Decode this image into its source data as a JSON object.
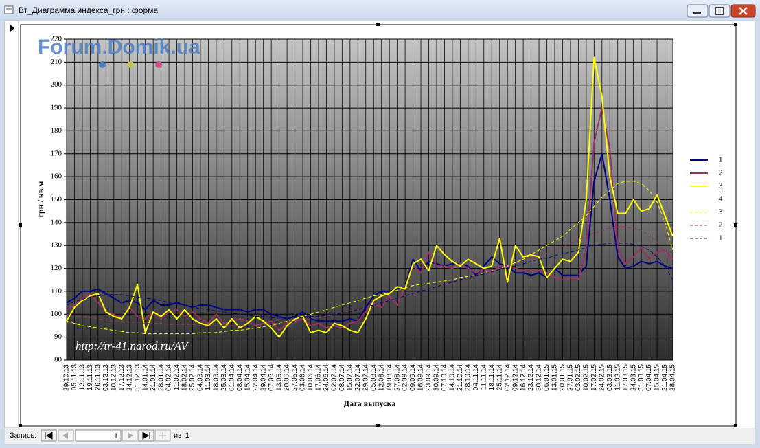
{
  "window": {
    "title": "Вт_Диаграмма индекса_грн : форма"
  },
  "record_nav": {
    "label": "Запись:",
    "current": "1",
    "of_label": "из",
    "total": "1"
  },
  "chart_data": {
    "type": "line",
    "watermark": "Forum.Domik.ua",
    "annotation": "http://tr-41.narod.ru/AV",
    "x_label": "Дата выпуска",
    "y_label": "грн / кв.м",
    "ylim": [
      80,
      220
    ],
    "yticks": [
      80,
      90,
      100,
      110,
      120,
      130,
      140,
      150,
      160,
      170,
      180,
      190,
      200,
      210,
      220
    ],
    "grid": true,
    "legend": "right",
    "categories": [
      "29.10.13",
      "05.11.13",
      "12.11.13",
      "19.11.13",
      "26.11.13",
      "03.12.13",
      "10.12.13",
      "17.12.13",
      "24.12.13",
      "31.12.13",
      "14.01.14",
      "21.01.14",
      "28.01.14",
      "04.02.14",
      "11.02.14",
      "18.02.14",
      "25.02.14",
      "04.03.14",
      "11.03.14",
      "18.03.14",
      "25.03.14",
      "01.04.14",
      "08.04.14",
      "15.04.14",
      "22.04.14",
      "29.04.14",
      "07.05.14",
      "13.05.14",
      "20.05.14",
      "27.05.14",
      "03.06.14",
      "10.06.14",
      "17.06.14",
      "24.06.14",
      "02.07.14",
      "08.07.14",
      "15.07.14",
      "22.07.14",
      "29.07.14",
      "05.08.14",
      "12.08.14",
      "19.08.14",
      "27.08.14",
      "02.09.14",
      "09.09.14",
      "16.09.14",
      "23.09.14",
      "30.09.14",
      "07.10.14",
      "14.10.14",
      "21.10.14",
      "28.10.14",
      "04.11.14",
      "11.11.14",
      "18.11.14",
      "25.11.14",
      "02.12.14",
      "09.12.14",
      "16.12.14",
      "23.12.14",
      "30.12.14",
      "06.01.15",
      "13.01.15",
      "20.01.15",
      "27.01.15",
      "03.02.15",
      "10.02.15",
      "17.02.15",
      "24.02.15",
      "03.03.15",
      "11.03.15",
      "17.03.15",
      "24.03.15",
      "31.03.15",
      "07.04.15",
      "15.04.15",
      "21.04.15",
      "28.04.15"
    ],
    "series": [
      {
        "name": "1",
        "color": "#000080",
        "style": "solid",
        "values": [
          105,
          107,
          110,
          110,
          111,
          109,
          107,
          105,
          106,
          105,
          102,
          106,
          104,
          104,
          105,
          104,
          103,
          104,
          104,
          103,
          102,
          102,
          102,
          101,
          102,
          102,
          100,
          99,
          98,
          99,
          101,
          98,
          97,
          97,
          97,
          97,
          98,
          97,
          103,
          108,
          110,
          110,
          111,
          112,
          124,
          119,
          123,
          122,
          121,
          122,
          122,
          121,
          117,
          121,
          125,
          122,
          121,
          118,
          118,
          117,
          118,
          116,
          120,
          117,
          117,
          117,
          121,
          158,
          170,
          150,
          125,
          120,
          121,
          123,
          122,
          123,
          121,
          120
        ]
      },
      {
        "name": "2",
        "color": "#993366",
        "style": "solid",
        "values": [
          102,
          104,
          107,
          109,
          105,
          101,
          100,
          98,
          103,
          99,
          98,
          101,
          98,
          101,
          102,
          99,
          101,
          98,
          96,
          100,
          96,
          97,
          98,
          97,
          95,
          96,
          97,
          93,
          96,
          97,
          98,
          95,
          96,
          94,
          95,
          94,
          96,
          97,
          101,
          105,
          103,
          108,
          104,
          112,
          121,
          118,
          127,
          121,
          121,
          120,
          122,
          120,
          118,
          120,
          118,
          121,
          121,
          120,
          119,
          119,
          119,
          118,
          116,
          115,
          116,
          115,
          128,
          175,
          190,
          172,
          129,
          122,
          125,
          129,
          124,
          127,
          128,
          124
        ]
      },
      {
        "name": "3",
        "color": "#ffff00",
        "style": "solid",
        "values": [
          97,
          103,
          106,
          108,
          109,
          101,
          99,
          98,
          103,
          113,
          92,
          101,
          99,
          102,
          98,
          102,
          98,
          96,
          95,
          98,
          94,
          98,
          94,
          96,
          99,
          97,
          94,
          90,
          95,
          98,
          99,
          92,
          93,
          92,
          96,
          95,
          93,
          92,
          98,
          106,
          108,
          109,
          112,
          111,
          122,
          124,
          119,
          130,
          126,
          123,
          121,
          124,
          122,
          120,
          121,
          133,
          114,
          130,
          125,
          126,
          125,
          116,
          120,
          124,
          123,
          127,
          150,
          212,
          195,
          160,
          144,
          144,
          150,
          145,
          146,
          152,
          143,
          134
        ]
      },
      {
        "name": "4",
        "color": "#ffffff",
        "style": "solid",
        "values": [
          null,
          null,
          null,
          null,
          null,
          null,
          null,
          null,
          null,
          null,
          null,
          null,
          null,
          null,
          null,
          null,
          null,
          null,
          null,
          null,
          null,
          null,
          null,
          null,
          null,
          null,
          null,
          null,
          null,
          null,
          null,
          null,
          null,
          null,
          null,
          null,
          null,
          null,
          null,
          null,
          null,
          null,
          null,
          null,
          null,
          null,
          null,
          null,
          null,
          null,
          null,
          null,
          null,
          null,
          null,
          null,
          null,
          null,
          null,
          null,
          null,
          null,
          null,
          null,
          null,
          null,
          null,
          null,
          null,
          null,
          null,
          null,
          null,
          null,
          null,
          null,
          null,
          null
        ]
      },
      {
        "name": "3",
        "color": "#ffff00",
        "style": "dashed",
        "values": [
          97,
          96,
          95,
          94.5,
          94,
          93.5,
          93,
          92.5,
          92,
          92,
          91.5,
          91.5,
          91.5,
          91.5,
          91.5,
          91.5,
          91.5,
          92,
          92,
          92,
          92.5,
          93,
          93,
          93.5,
          94,
          94.5,
          95,
          96,
          97,
          98,
          99,
          100,
          101,
          102,
          103,
          104,
          105,
          106,
          107,
          108,
          108.5,
          109.5,
          110.5,
          111.5,
          112.5,
          113,
          113.5,
          114,
          114.5,
          115,
          116,
          116.5,
          117,
          118,
          119,
          120,
          121,
          122.5,
          124,
          126,
          128,
          130,
          132,
          134,
          137,
          140,
          143,
          147,
          151,
          154,
          157,
          158,
          158,
          157,
          154,
          149,
          140,
          128
        ]
      },
      {
        "name": "2",
        "color": "#993366",
        "style": "dashed",
        "values": [
          100,
          99.5,
          99,
          98.5,
          98,
          97.5,
          97,
          97,
          96.5,
          96.5,
          96,
          96,
          96,
          95.5,
          95.5,
          95.5,
          95.5,
          95,
          95,
          95,
          95,
          95,
          95,
          95,
          95.5,
          95.5,
          96,
          96,
          96.5,
          97,
          97.5,
          98,
          98.5,
          99,
          100,
          100.5,
          101.5,
          102,
          103,
          104,
          105,
          106,
          107,
          108,
          109,
          110,
          111,
          112,
          113,
          114,
          115,
          116,
          117,
          118,
          119,
          120,
          121,
          122,
          123,
          124,
          125,
          126.5,
          128,
          129.5,
          131,
          132.5,
          134,
          135.5,
          136.5,
          137.5,
          138,
          138,
          137.5,
          136.5,
          134.5,
          131.5,
          127,
          121
        ]
      },
      {
        "name": "1",
        "color": "#000080",
        "style": "dashed",
        "values": [
          104,
          105.5,
          106.5,
          107.5,
          108,
          108.5,
          108.5,
          108.5,
          108,
          107.5,
          107,
          106.5,
          106,
          105,
          104.5,
          104,
          103,
          102.5,
          102,
          101.5,
          101,
          100.5,
          100,
          99.5,
          99,
          99,
          98.5,
          98.5,
          98.5,
          98.5,
          98.5,
          99,
          99,
          99.5,
          100,
          100.5,
          101,
          102,
          103,
          104,
          105,
          106,
          107,
          108,
          109,
          110,
          111,
          112,
          113,
          114,
          115,
          116,
          117,
          117.5,
          118.5,
          119.5,
          120.5,
          121,
          122,
          123,
          124,
          124.5,
          125.5,
          126.5,
          127,
          128,
          129,
          130,
          130.5,
          131,
          131,
          131,
          130.5,
          129.5,
          128,
          125,
          121,
          115
        ]
      }
    ]
  }
}
